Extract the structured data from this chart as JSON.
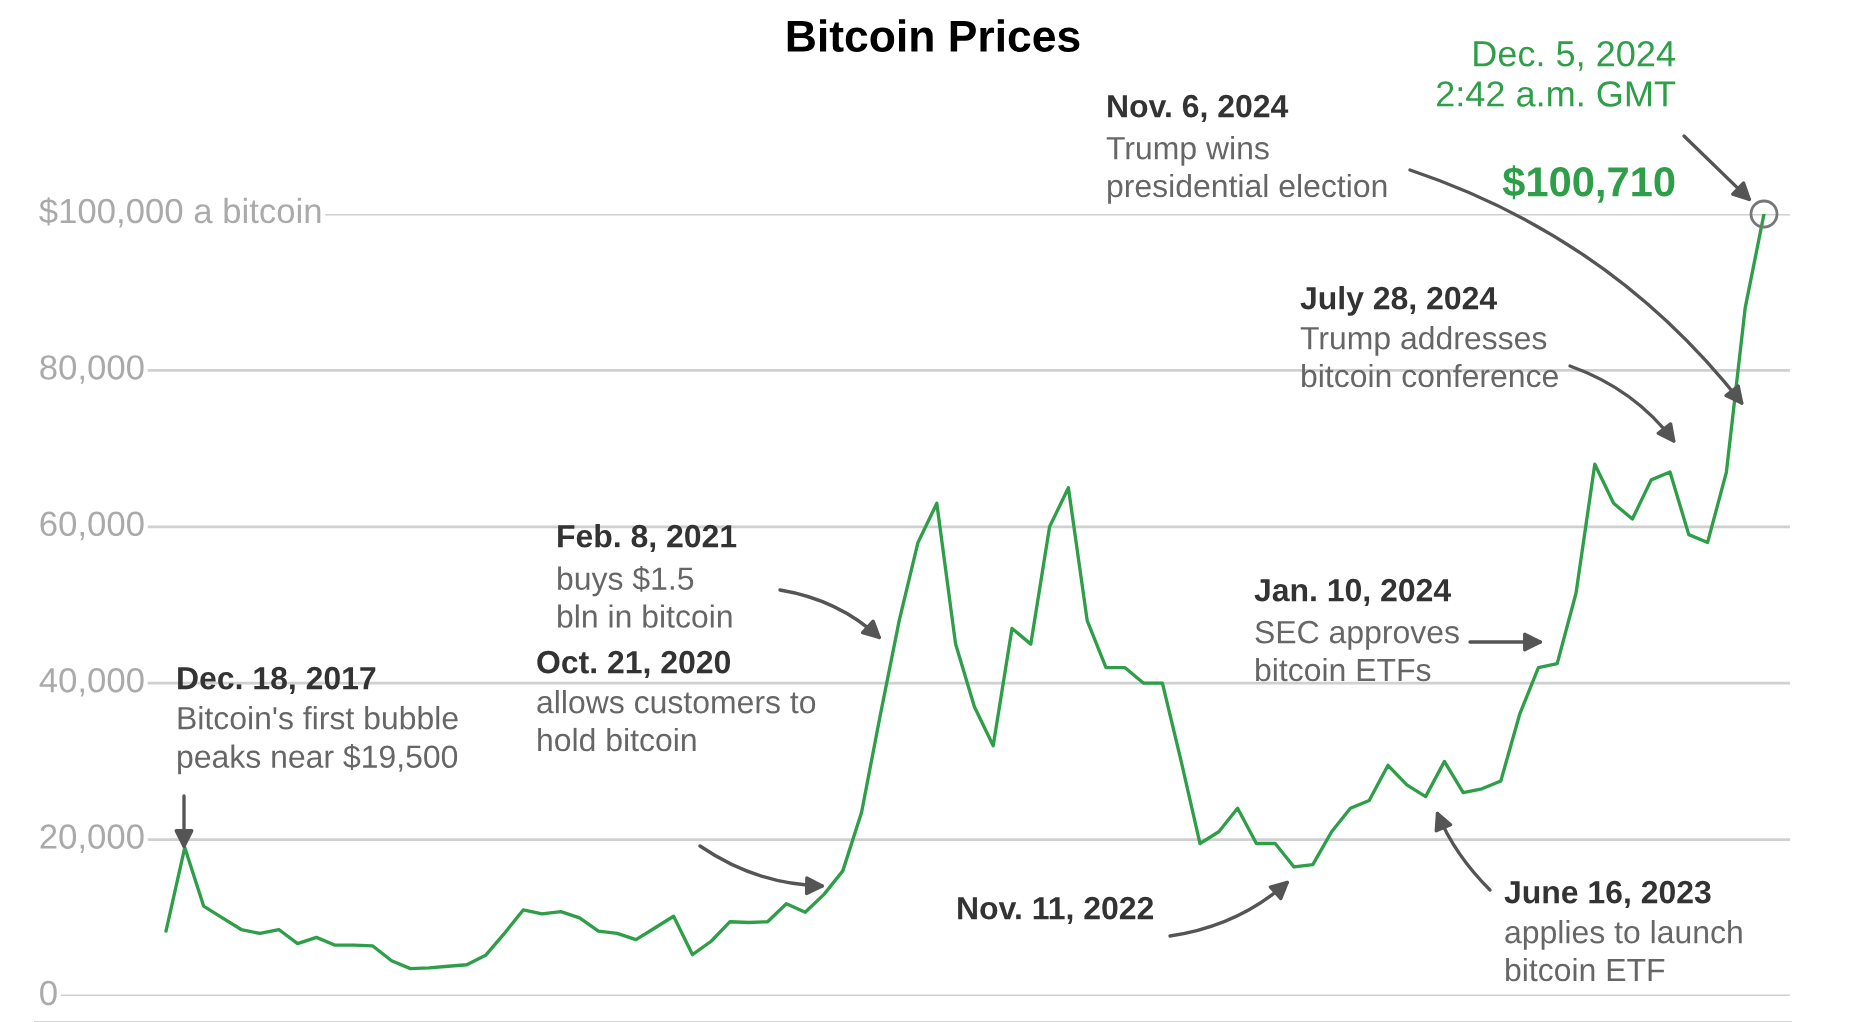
{
  "chart_data": {
    "type": "line",
    "title": "Bitcoin Prices",
    "categories": [
      null,
      null,
      null,
      null,
      null,
      null,
      null,
      null,
      null,
      null,
      null,
      null,
      null,
      null,
      null,
      null,
      null,
      null,
      null,
      null,
      null,
      null,
      null,
      null,
      null,
      null,
      null,
      null,
      null,
      null,
      null,
      null,
      null,
      null,
      null,
      null,
      null,
      null,
      null,
      null,
      null,
      null,
      null,
      null,
      null,
      null,
      null,
      null,
      null,
      null,
      null,
      null,
      null,
      null,
      null,
      null,
      null,
      null,
      null,
      null,
      null,
      null,
      null,
      null,
      null,
      null,
      null,
      null,
      null,
      null,
      null,
      null,
      null,
      null,
      null,
      null,
      null,
      null,
      null,
      null,
      null,
      null,
      null,
      null,
      null,
      null
    ],
    "series": [
      {
        "color": "#2e9e48",
        "values": [
          8300,
          19000,
          11500,
          10000,
          8500,
          8000,
          8500,
          6700,
          7500,
          6500,
          6500,
          6400,
          4500,
          3500,
          3600,
          3800,
          4000,
          5200,
          8000,
          11000,
          10500,
          10800,
          10000,
          8300,
          8000,
          7200,
          8700,
          10200,
          5300,
          7000,
          9500,
          9400,
          9500,
          11800,
          10700,
          13000,
          16000,
          23500,
          36000,
          48000,
          58000,
          63000,
          45000,
          37000,
          32000,
          47000,
          45000,
          60000,
          65000,
          48000,
          42000,
          42000,
          40000,
          40000,
          30000,
          19500,
          21000,
          24000,
          19500,
          19500,
          16500,
          16800,
          21000,
          24000,
          25000,
          29500,
          27000,
          25500,
          30000,
          26000,
          26500,
          27500,
          36000,
          42000,
          42500,
          51500,
          68000,
          63000,
          61000,
          66000,
          67000,
          59000,
          58000,
          67000,
          88000,
          100000
        ]
      }
    ],
    "ylim": [
      0,
      100000
    ],
    "yticks": [
      0,
      {
        "value": 20000,
        "label": "20,000"
      },
      {
        "value": 40000,
        "label": "40,000"
      },
      {
        "value": 60000,
        "label": "60,000"
      },
      {
        "value": 80000,
        "label": "80,000"
      },
      {
        "value": 100000,
        "label": "$100,000 a bitcoin"
      }
    ],
    "tick_labels": "y",
    "grid": "y",
    "marker": "none",
    "line_style": "solid",
    "annotations": [
      "Dec. 18, 2017",
      "Bitcoin's first bubble\npeaks near $19,500",
      "Oct. 21, 2020",
      "allows customers to\nhold bitcoin",
      "Feb. 8, 2021",
      "buys $1.5\nbln in bitcoin",
      "Nov. 11, 2022",
      "June 16, 2023",
      "applies to launch\nbitcoin ETF",
      "Jan. 10, 2024",
      "SEC approves\nbitcoin ETFs",
      "July 28, 2024",
      "Trump addresses\nbitcoin conference",
      "Nov. 6, 2024",
      "Trump wins\npresidential election",
      "Dec. 5, 2024\n2:42 a.m. GMT",
      "$100,710"
    ]
  }
}
